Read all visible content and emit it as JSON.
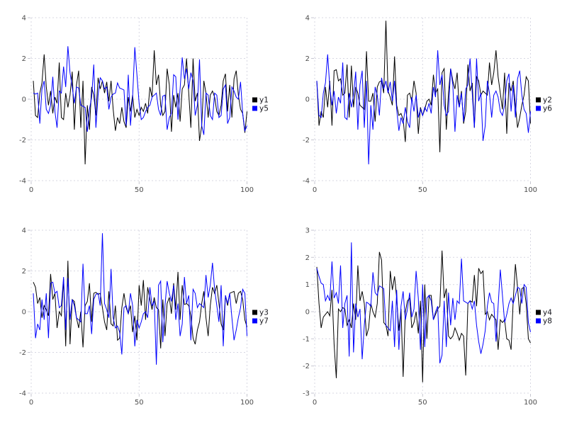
{
  "style": {
    "background_color": "#ffffff",
    "grid_color": "#d7d7e2",
    "tick_color": "#c6c6d0",
    "tick_label_color": "#4d4d4d",
    "legend_text_color": "#16161d",
    "series1_color": "#000000",
    "series2_color": "#0000ff"
  },
  "chart_data": [
    {
      "type": "line",
      "panel": "top-left",
      "title": "",
      "xlabel": "",
      "ylabel": "",
      "xlim": [
        0,
        100
      ],
      "ylim": [
        -4,
        4
      ],
      "xticks": [
        0,
        50,
        100
      ],
      "yticks": [
        -4,
        -2,
        0,
        2,
        4
      ],
      "grid": true,
      "legend_position": "right-center",
      "x_start": 1,
      "x_step": 1,
      "series": [
        {
          "name": "y1",
          "color": "#000000",
          "values": [
            0.9,
            -0.8,
            -0.9,
            0.3,
            0.8,
            2.2,
            0.6,
            -0.3,
            0.4,
            -0.7,
            0.1,
            -0.2,
            1.8,
            -0.9,
            -1.0,
            0.3,
            -0.4,
            0.2,
            1.35,
            -1.5,
            0.7,
            1.4,
            -1.4,
            0.9,
            -3.2,
            -0.3,
            -1.5,
            0.6,
            0.2,
            -0.8,
            1.05,
            0.5,
            0.9,
            0.3,
            0.85,
            -0.1,
            0.9,
            -0.5,
            -1.55,
            -0.9,
            -1.2,
            -0.4,
            -1.1,
            -1.4,
            0.1,
            -0.6,
            0.2,
            -0.9,
            -0.5,
            -0.8,
            -0.4,
            -0.6,
            -0.2,
            -0.7,
            0.6,
            0.1,
            2.4,
            0.7,
            1.2,
            -0.3,
            -0.8,
            -0.6,
            1.5,
            0.7,
            -1.6,
            0.2,
            -0.4,
            0.3,
            -1.1,
            0.5,
            0.7,
            2.0,
            0.3,
            -1.4,
            2.0,
            -0.1,
            0.3,
            -2.05,
            -1.3,
            0.9,
            0.3,
            -0.9,
            0.2,
            0.4,
            0.1,
            -0.6,
            -0.8,
            -0.3,
            0.9,
            1.25,
            -0.6,
            0.7,
            -0.9,
            1.0,
            1.4,
            0.2,
            -0.5,
            -0.7,
            -1.65,
            -0.6
          ]
        },
        {
          "name": "y5",
          "color": "#0000ff",
          "values": [
            0.3,
            0.25,
            0.3,
            -1.2,
            0.5,
            0.9,
            -0.5,
            -0.7,
            -0.3,
            1.1,
            -0.6,
            -1.4,
            0.4,
            0.3,
            1.6,
            0.6,
            2.6,
            1.3,
            0.6,
            -0.2,
            0.6,
            0.55,
            -0.3,
            -0.35,
            -0.4,
            -1.6,
            -0.5,
            0.1,
            1.7,
            -1.4,
            0.2,
            1.05,
            0.9,
            0.5,
            0.6,
            -0.5,
            0.1,
            0.25,
            0.3,
            0.8,
            0.55,
            0.5,
            0.45,
            -1.3,
            1.2,
            -1.3,
            0.1,
            2.55,
            1.2,
            -0.2,
            -1.0,
            -0.9,
            -0.6,
            -0.4,
            -0.3,
            0.1,
            0.2,
            0.3,
            -0.5,
            -0.8,
            0.15,
            0.2,
            -1.5,
            -0.9,
            -0.7,
            1.2,
            1.1,
            -1.0,
            0.5,
            2.05,
            1.0,
            1.5,
            0.5,
            1.3,
            0.9,
            -0.8,
            -0.3,
            1.95,
            -1.3,
            -1.75,
            0.3,
            0.2,
            -0.8,
            -1.0,
            0.3,
            0.2,
            -0.9,
            -0.8,
            0.5,
            0.7,
            -1.2,
            -0.9,
            0.6,
            0.4,
            0.1,
            0.0,
            0.85,
            -0.7,
            -1.55,
            -1.3
          ]
        }
      ]
    },
    {
      "type": "line",
      "panel": "top-right",
      "title": "",
      "xlabel": "",
      "ylabel": "",
      "xlim": [
        0,
        100
      ],
      "ylim": [
        -4,
        4
      ],
      "xticks": [
        0,
        50,
        100
      ],
      "yticks": [
        -4,
        -2,
        0,
        2,
        4
      ],
      "grid": true,
      "legend_position": "right-center",
      "x_start": 1,
      "x_step": 1,
      "series": [
        {
          "name": "y2",
          "color": "#000000",
          "values": [
            0.9,
            -1.3,
            -0.6,
            -0.9,
            0.6,
            -0.4,
            0.9,
            -1.3,
            1.4,
            1.45,
            0.9,
            1.0,
            0.2,
            0.3,
            1.7,
            -0.9,
            1.65,
            -0.4,
            0.6,
            0.3,
            -0.3,
            -0.4,
            -0.5,
            2.35,
            -0.1,
            -0.1,
            0.3,
            -1.1,
            0.6,
            0.85,
            0.9,
            0.3,
            3.85,
            0.4,
            0.1,
            -0.3,
            2.1,
            -0.3,
            -0.8,
            -0.7,
            -1.0,
            -2.1,
            0.2,
            0.3,
            -0.1,
            0.9,
            0.3,
            -1.7,
            -0.4,
            -0.8,
            -0.5,
            -0.1,
            0.0,
            -0.3,
            1.2,
            0.3,
            0.5,
            -2.6,
            1.3,
            1.5,
            -1.5,
            0.3,
            1.5,
            0.9,
            0.5,
            1.3,
            -0.4,
            0.4,
            -1.2,
            -0.6,
            1.7,
            0.4,
            0.8,
            -1.4,
            1.1,
            0.9,
            0.2,
            0.4,
            0.3,
            0.2,
            1.8,
            0.7,
            1.3,
            2.4,
            1.1,
            0.3,
            -0.5,
            1.3,
            -1.7,
            0.8,
            0.4,
            0.9,
            -0.3,
            -1.4,
            -0.9,
            -0.3,
            0.2,
            1.1,
            0.9,
            -1.2
          ]
        },
        {
          "name": "y6",
          "color": "#0000ff",
          "values": [
            0.9,
            -0.8,
            -0.9,
            0.3,
            0.8,
            2.2,
            0.6,
            -0.3,
            0.4,
            -0.7,
            0.1,
            -0.2,
            1.8,
            -0.9,
            -1.0,
            0.3,
            -0.4,
            0.2,
            1.35,
            -1.5,
            0.7,
            1.4,
            -1.4,
            0.9,
            -3.2,
            -0.3,
            -1.5,
            0.6,
            0.2,
            -0.8,
            1.05,
            0.5,
            0.9,
            0.3,
            0.85,
            -0.1,
            0.9,
            -0.5,
            -1.55,
            -0.9,
            -1.2,
            -0.4,
            -1.1,
            -1.4,
            0.1,
            -0.6,
            0.2,
            -0.9,
            -0.5,
            -0.8,
            -0.4,
            -0.6,
            -0.2,
            -0.7,
            0.6,
            0.1,
            2.4,
            0.7,
            1.2,
            -0.3,
            -0.8,
            -0.6,
            1.5,
            0.7,
            -1.6,
            0.2,
            -0.4,
            0.3,
            -1.1,
            0.5,
            0.7,
            2.0,
            0.3,
            -1.4,
            2.0,
            -0.1,
            0.3,
            -2.05,
            -1.3,
            0.9,
            0.3,
            -0.9,
            0.2,
            0.4,
            0.1,
            -0.6,
            -0.8,
            -0.3,
            0.9,
            1.25,
            -0.6,
            0.7,
            -0.9,
            1.0,
            1.4,
            0.2,
            -0.5,
            -0.7,
            -1.65,
            -0.6
          ]
        }
      ]
    },
    {
      "type": "line",
      "panel": "bottom-left",
      "title": "",
      "xlabel": "",
      "ylabel": "",
      "xlim": [
        0,
        100
      ],
      "ylim": [
        -4,
        4
      ],
      "xticks": [
        0,
        50,
        100
      ],
      "yticks": [
        -4,
        -2,
        0,
        2,
        4
      ],
      "grid": true,
      "legend_position": "right-center",
      "x_start": 1,
      "x_step": 1,
      "series": [
        {
          "name": "y3",
          "color": "#000000",
          "values": [
            1.45,
            1.2,
            0.4,
            0.7,
            -0.3,
            0.3,
            0.1,
            -0.2,
            1.85,
            0.6,
            0.9,
            -0.8,
            0.0,
            -0.2,
            1.6,
            -1.7,
            2.5,
            -1.6,
            0.6,
            0.5,
            -0.3,
            -0.8,
            0.0,
            -1.75,
            0.3,
            0.5,
            1.4,
            -0.5,
            0.9,
            0.95,
            0.85,
            0.9,
            0.2,
            -0.5,
            -0.9,
            1.0,
            -0.6,
            -0.7,
            0.3,
            -1.4,
            -1.3,
            0.2,
            0.9,
            0.2,
            -0.1,
            0.3,
            -1.0,
            -0.2,
            -1.4,
            1.3,
            0.3,
            1.55,
            -0.4,
            1.2,
            0.6,
            0.1,
            0.7,
            0.2,
            0.1,
            -1.8,
            0.6,
            -1.2,
            0.4,
            0.7,
            -0.1,
            1.4,
            0.1,
            1.95,
            -0.4,
            1.3,
            0.35,
            0.4,
            0.3,
            -0.2,
            -1.3,
            -1.6,
            -0.9,
            -0.5,
            0.4,
            1.0,
            -0.3,
            -1.2,
            0.3,
            1.2,
            0.9,
            1.3,
            0.4,
            -0.6,
            -0.9,
            0.8,
            0.3,
            0.9,
            0.95,
            1.0,
            0.4,
            0.9,
            1.0,
            0.6,
            -0.4,
            -0.75
          ]
        },
        {
          "name": "y7",
          "color": "#0000ff",
          "values": [
            0.9,
            -1.3,
            -0.6,
            -0.9,
            0.6,
            -0.4,
            0.9,
            -1.3,
            1.4,
            1.45,
            0.9,
            1.0,
            0.2,
            0.3,
            1.7,
            -0.9,
            1.65,
            -0.4,
            0.6,
            0.3,
            -0.3,
            -0.4,
            -0.5,
            2.35,
            -0.1,
            -0.1,
            0.3,
            -1.1,
            0.6,
            0.85,
            0.9,
            0.3,
            3.85,
            0.4,
            0.1,
            -0.3,
            2.1,
            -0.3,
            -0.8,
            -0.7,
            -1.0,
            -2.1,
            0.2,
            0.3,
            -0.1,
            0.9,
            0.3,
            -1.7,
            -0.4,
            -0.8,
            -0.5,
            -0.1,
            0.0,
            -0.3,
            1.2,
            0.3,
            0.5,
            -2.6,
            1.3,
            1.5,
            -1.5,
            0.3,
            1.5,
            0.9,
            0.5,
            1.3,
            -0.4,
            0.4,
            -1.2,
            -0.6,
            1.7,
            0.4,
            0.8,
            -1.4,
            1.1,
            0.9,
            0.2,
            0.4,
            0.3,
            0.2,
            1.8,
            0.7,
            1.3,
            2.4,
            1.1,
            0.3,
            -0.5,
            1.3,
            -1.7,
            0.8,
            0.4,
            0.9,
            -0.3,
            -1.4,
            -0.9,
            -0.3,
            0.2,
            1.1,
            0.9,
            -1.2
          ]
        }
      ]
    },
    {
      "type": "line",
      "panel": "bottom-right",
      "title": "",
      "xlabel": "",
      "ylabel": "",
      "xlim": [
        0,
        100
      ],
      "ylim": [
        -3,
        3
      ],
      "xticks": [
        0,
        50,
        100
      ],
      "yticks": [
        -3,
        -2,
        -1,
        0,
        1,
        2,
        3
      ],
      "grid": true,
      "legend_position": "right-center",
      "x_start": 1,
      "x_step": 1,
      "series": [
        {
          "name": "y4",
          "color": "#000000",
          "values": [
            1.65,
            0.3,
            -0.6,
            -0.2,
            -0.1,
            0.0,
            -0.15,
            0.8,
            -1.2,
            -2.45,
            0.1,
            0.0,
            0.15,
            0.1,
            -0.5,
            -0.3,
            -0.6,
            0.3,
            -0.3,
            1.7,
            0.4,
            0.75,
            0.3,
            -0.9,
            -0.6,
            0.3,
            0.0,
            -0.2,
            0.3,
            2.2,
            1.9,
            -0.4,
            -0.5,
            -0.9,
            1.5,
            0.8,
            1.3,
            0.5,
            -0.7,
            0.1,
            -2.4,
            0.0,
            0.4,
            0.5,
            -0.6,
            -0.4,
            0.0,
            -0.8,
            0.4,
            -2.6,
            1.0,
            -1.0,
            0.6,
            0.6,
            -0.3,
            -0.1,
            0.1,
            0.2,
            2.25,
            0.5,
            0.85,
            -0.9,
            -1.0,
            -0.9,
            -0.6,
            -0.8,
            -1.05,
            -0.8,
            -0.9,
            -2.35,
            0.3,
            0.4,
            0.35,
            1.35,
            0.2,
            1.6,
            1.4,
            1.5,
            -0.1,
            0.0,
            -0.3,
            -0.1,
            -0.2,
            -0.3,
            -1.4,
            -0.3,
            -0.4,
            -0.3,
            -1.0,
            -1.05,
            -1.4,
            0.4,
            1.75,
            0.9,
            -0.1,
            0.85,
            0.9,
            0.3,
            -1.0,
            -1.15
          ]
        },
        {
          "name": "y8",
          "color": "#0000ff",
          "values": [
            1.6,
            1.3,
            1.05,
            1.0,
            0.4,
            0.6,
            0.4,
            1.85,
            0.5,
            0.7,
            0.3,
            1.7,
            -0.6,
            0.3,
            0.6,
            -1.65,
            2.55,
            -1.5,
            0.3,
            -0.2,
            0.1,
            -1.75,
            -0.5,
            0.35,
            0.3,
            0.2,
            1.45,
            0.7,
            0.6,
            0.95,
            0.9,
            0.85,
            -0.5,
            -0.6,
            -0.7,
            0.4,
            -1.3,
            0.8,
            -1.4,
            0.2,
            0.75,
            -0.3,
            0.1,
            0.7,
            -0.2,
            0.1,
            1.5,
            0.5,
            -1.4,
            1.0,
            -1.3,
            0.5,
            0.6,
            0.4,
            -0.3,
            0.0,
            0.2,
            -1.9,
            -1.6,
            0.4,
            -1.3,
            0.7,
            -0.5,
            0.5,
            -0.3,
            0.4,
            0.3,
            1.95,
            0.4,
            0.35,
            0.3,
            0.4,
            0.1,
            0.4,
            -0.5,
            -1.1,
            -1.55,
            -1.2,
            -0.7,
            0.2,
            0.7,
            0.35,
            0.3,
            -1.1,
            0.2,
            1.55,
            0.6,
            -0.4,
            -0.1,
            0.3,
            0.5,
            0.3,
            0.6,
            0.9,
            0.85,
            0.3,
            1.0,
            0.9,
            -0.4,
            -0.75
          ]
        }
      ]
    }
  ]
}
